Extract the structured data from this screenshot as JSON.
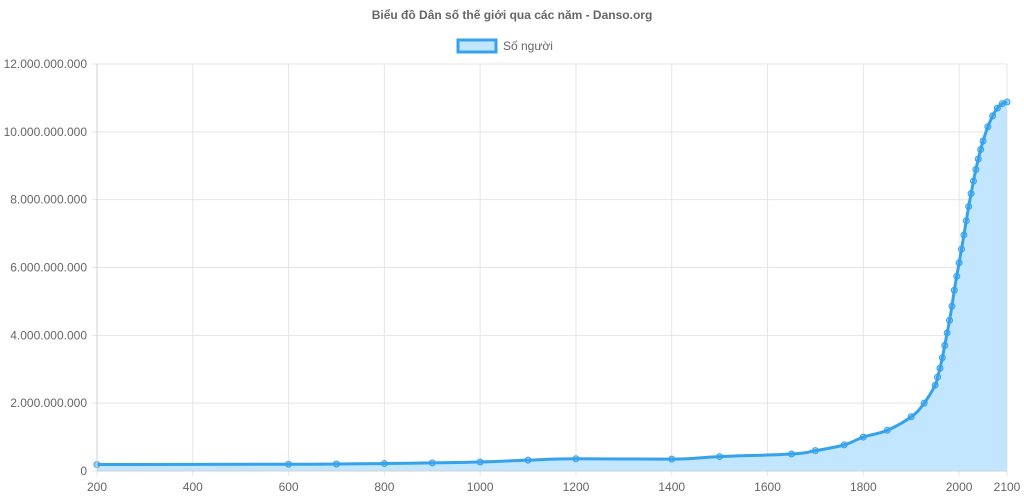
{
  "chart_data": {
    "type": "line",
    "title": "Biểu đồ Dân số thế giới qua các năm - Danso.org",
    "legend_position": "top",
    "grid": true,
    "xlim": [
      200,
      2100
    ],
    "ylim": [
      0,
      12000000000
    ],
    "x_ticks": [
      200,
      400,
      600,
      800,
      1000,
      1200,
      1400,
      1600,
      1800,
      2000,
      2100
    ],
    "x_tick_labels": [
      "200",
      "400",
      "600",
      "800",
      "1000",
      "1200",
      "1400",
      "1600",
      "1800",
      "2000",
      "2100"
    ],
    "y_ticks": [
      0,
      2000000000,
      4000000000,
      6000000000,
      8000000000,
      10000000000,
      12000000000
    ],
    "y_tick_labels": [
      "0",
      "2.000.000.000",
      "4.000.000.000",
      "6.000.000.000",
      "8.000.000.000",
      "10.000.000.000",
      "12.000.000.000"
    ],
    "series": [
      {
        "name": "Số người",
        "color": "#36a2eb",
        "fill": "#c2e6fd",
        "x": [
          200,
          600,
          700,
          800,
          900,
          1000,
          1100,
          1200,
          1400,
          1500,
          1650,
          1700,
          1760,
          1800,
          1850,
          1900,
          1927,
          1950,
          1955,
          1960,
          1965,
          1970,
          1975,
          1980,
          1985,
          1990,
          1995,
          2000,
          2005,
          2010,
          2015,
          2020,
          2025,
          2030,
          2035,
          2040,
          2045,
          2050,
          2060,
          2070,
          2080,
          2090,
          2100
        ],
        "values": [
          190000000,
          200000000,
          207000000,
          220000000,
          240000000,
          265000000,
          320000000,
          360000000,
          350000000,
          425000000,
          500000000,
          600000000,
          770000000,
          1000000000,
          1200000000,
          1600000000,
          2000000000,
          2530000000,
          2770000000,
          3030000000,
          3340000000,
          3700000000,
          4070000000,
          4440000000,
          4860000000,
          5330000000,
          5740000000,
          6140000000,
          6540000000,
          6960000000,
          7380000000,
          7800000000,
          8180000000,
          8550000000,
          8890000000,
          9200000000,
          9480000000,
          9730000000,
          10150000000,
          10470000000,
          10700000000,
          10830000000,
          10880000000
        ]
      }
    ]
  }
}
